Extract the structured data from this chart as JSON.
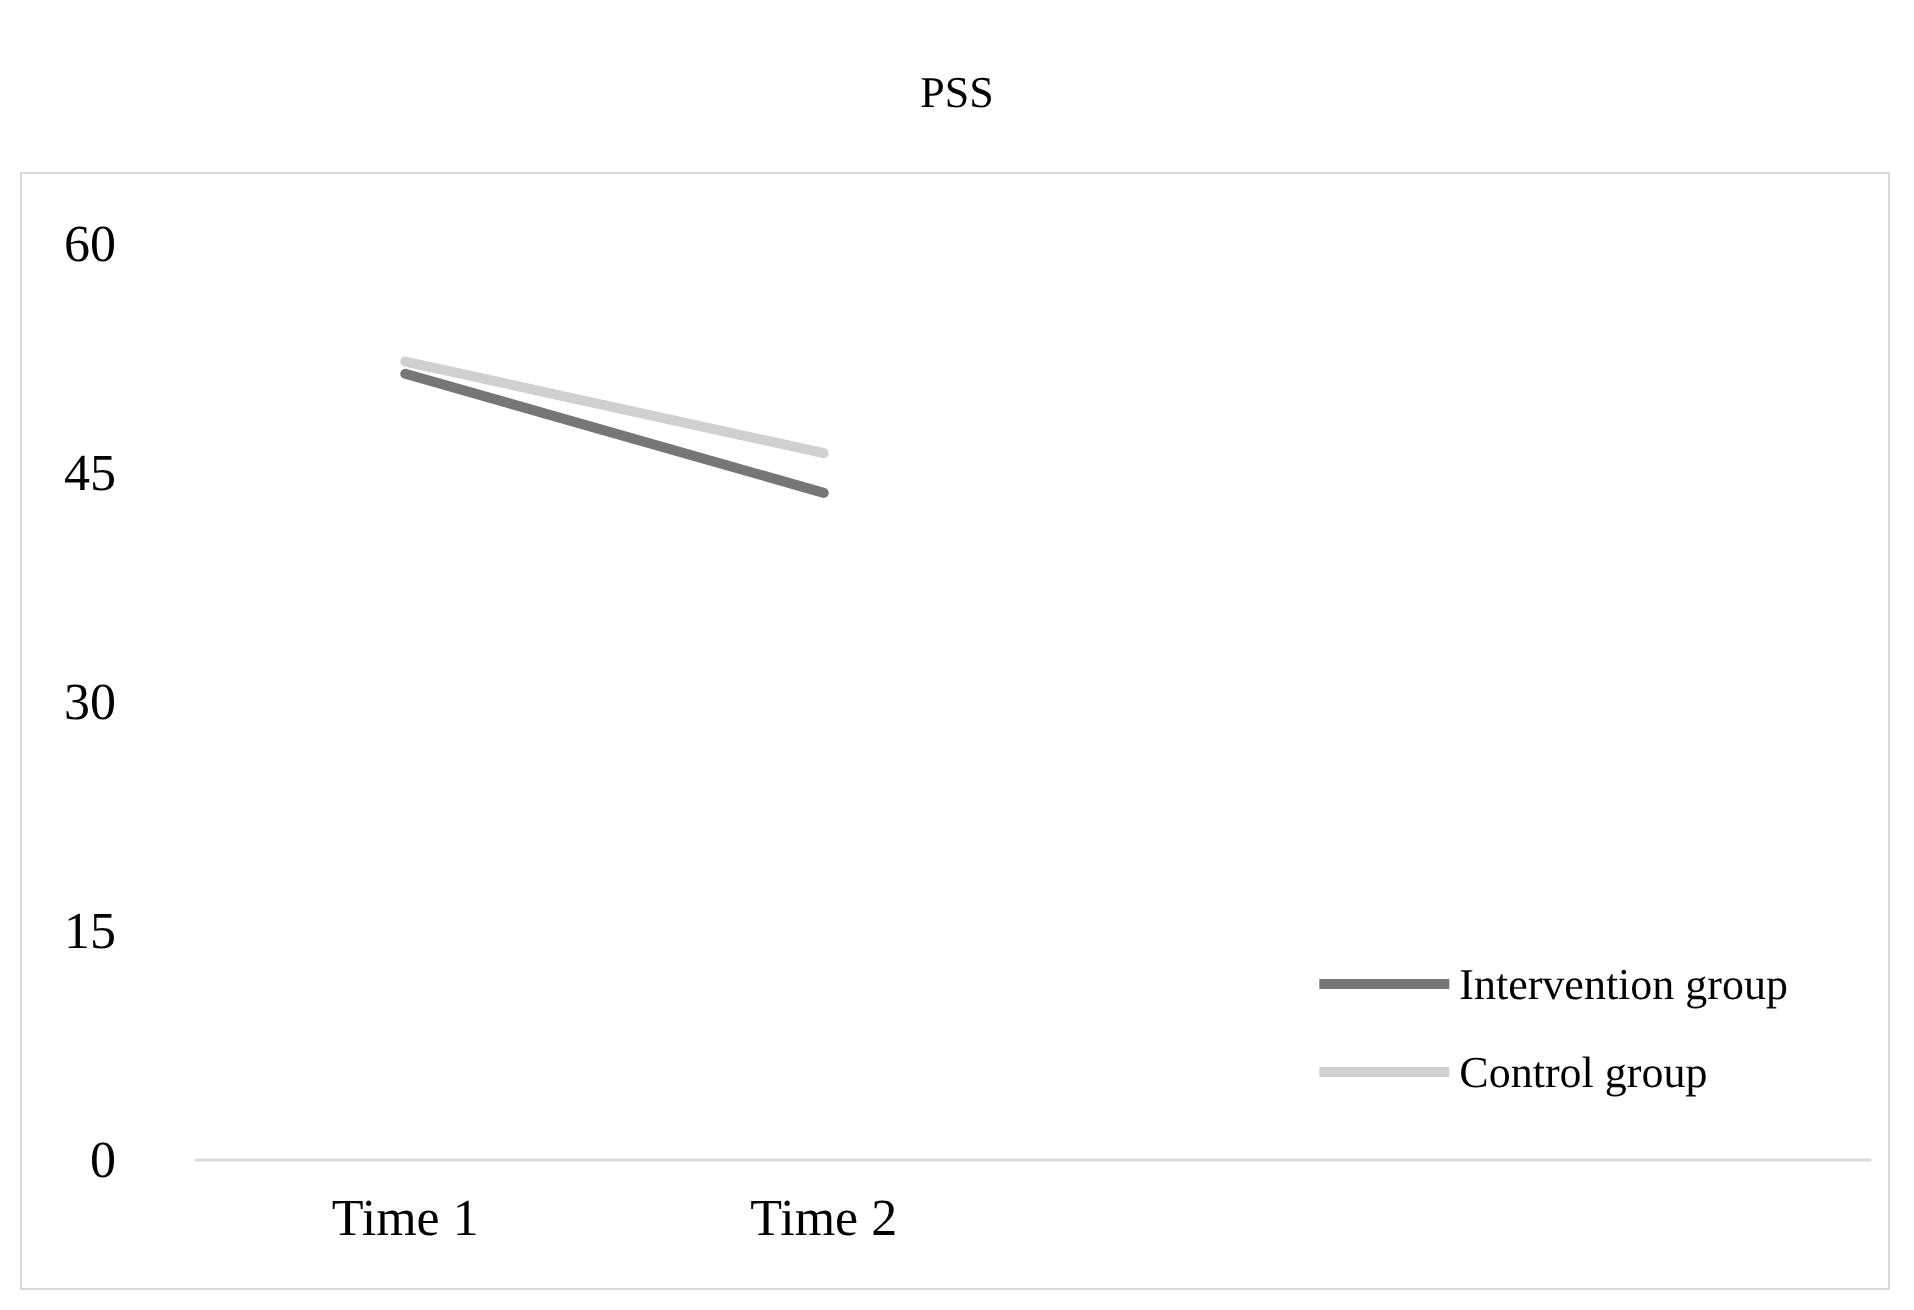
{
  "chart_data": {
    "type": "line",
    "title": "PSS",
    "categories": [
      "Time 1",
      "Time 2",
      null,
      null
    ],
    "series": [
      {
        "name": "Intervention group",
        "color": "#767676",
        "values": [
          51.5,
          43.7,
          null,
          null
        ]
      },
      {
        "name": "Control group",
        "color": "#d0d0d0",
        "values": [
          52.3,
          46.3,
          null,
          null
        ]
      }
    ],
    "ylim": [
      0,
      60
    ],
    "yticks": [
      0,
      15,
      30,
      45,
      60
    ],
    "grid": false,
    "legend": "bottom right",
    "marker": "none"
  }
}
